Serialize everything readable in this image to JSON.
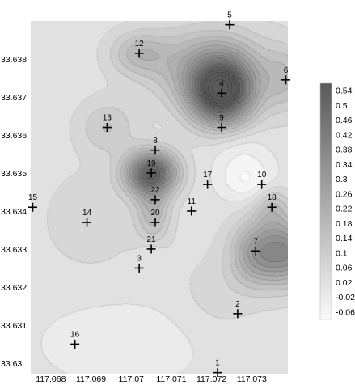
{
  "chart_data": {
    "type": "contour",
    "title": "",
    "xlabel": "",
    "ylabel": "",
    "xlim": [
      117.0675,
      117.0739
    ],
    "ylim": [
      33.6297,
      33.639
    ],
    "x_ticks": [
      "117.068",
      "117.069",
      "117.07",
      "117.071",
      "117.072",
      "117.073"
    ],
    "x_tick_values": [
      117.068,
      117.069,
      117.07,
      117.071,
      117.072,
      117.073
    ],
    "y_ticks": [
      "33.63",
      "33.631",
      "33.632",
      "33.633",
      "33.634",
      "33.635",
      "33.636",
      "33.637",
      "33.638"
    ],
    "y_tick_values": [
      33.63,
      33.631,
      33.632,
      33.633,
      33.634,
      33.635,
      33.636,
      33.637,
      33.638
    ],
    "colorbar": {
      "labels": [
        "0.54",
        "0.5",
        "0.46",
        "0.42",
        "0.38",
        "0.34",
        "0.3",
        "0.26",
        "0.22",
        "0.18",
        "0.14",
        "0.1",
        "0.06",
        "0.02",
        "-0.02",
        "-0.06"
      ],
      "values": [
        0.54,
        0.5,
        0.46,
        0.42,
        0.38,
        0.34,
        0.3,
        0.26,
        0.22,
        0.18,
        0.14,
        0.1,
        0.06,
        0.02,
        -0.02,
        -0.06
      ],
      "range": [
        -0.08,
        0.56
      ]
    },
    "points": [
      {
        "label": "1",
        "x": 117.07215,
        "y": 33.62975
      },
      {
        "label": "2",
        "x": 117.07265,
        "y": 33.6313
      },
      {
        "label": "3",
        "x": 117.0702,
        "y": 33.6325
      },
      {
        "label": "4",
        "x": 117.07225,
        "y": 33.6371
      },
      {
        "label": "5",
        "x": 117.07245,
        "y": 33.6389
      },
      {
        "label": "6",
        "x": 117.07385,
        "y": 33.63745
      },
      {
        "label": "7",
        "x": 117.0731,
        "y": 33.63295
      },
      {
        "label": "8",
        "x": 117.0706,
        "y": 33.6356
      },
      {
        "label": "9",
        "x": 117.07225,
        "y": 33.6362
      },
      {
        "label": "10",
        "x": 117.07325,
        "y": 33.6347
      },
      {
        "label": "11",
        "x": 117.0715,
        "y": 33.634
      },
      {
        "label": "12",
        "x": 117.0702,
        "y": 33.63815
      },
      {
        "label": "13",
        "x": 117.0694,
        "y": 33.6362
      },
      {
        "label": "14",
        "x": 117.0689,
        "y": 33.6337
      },
      {
        "label": "15",
        "x": 117.06755,
        "y": 33.6341
      },
      {
        "label": "16",
        "x": 117.0686,
        "y": 33.6305
      },
      {
        "label": "17",
        "x": 117.0719,
        "y": 33.6347
      },
      {
        "label": "18",
        "x": 117.0735,
        "y": 33.6341
      },
      {
        "label": "19",
        "x": 117.0705,
        "y": 33.635
      },
      {
        "label": "20",
        "x": 117.0706,
        "y": 33.6337
      },
      {
        "label": "21",
        "x": 117.0705,
        "y": 33.633
      },
      {
        "label": "22",
        "x": 117.0706,
        "y": 33.6343
      }
    ],
    "field_peaks": [
      {
        "x": 117.07225,
        "y": 33.6371,
        "value": 0.56,
        "sx": 0.00055,
        "sy": 0.0006
      },
      {
        "x": 117.07195,
        "y": 33.6378,
        "value": 0.22,
        "sx": 0.001,
        "sy": 0.0007
      },
      {
        "x": 117.0705,
        "y": 33.635,
        "value": 0.48,
        "sx": 0.00045,
        "sy": 0.0004
      },
      {
        "x": 117.07055,
        "y": 33.634,
        "value": 0.16,
        "sx": 0.0003,
        "sy": 0.0006
      },
      {
        "x": 117.0702,
        "y": 33.63815,
        "value": 0.14,
        "sx": 0.0005,
        "sy": 0.0004
      },
      {
        "x": 117.0694,
        "y": 33.6362,
        "value": 0.1,
        "sx": 0.0005,
        "sy": 0.0005
      },
      {
        "x": 117.0738,
        "y": 33.6329,
        "value": 0.34,
        "sx": 0.0006,
        "sy": 0.0006
      },
      {
        "x": 117.073,
        "y": 33.6329,
        "value": 0.14,
        "sx": 0.0004,
        "sy": 0.0006
      },
      {
        "x": 117.0735,
        "y": 33.6341,
        "value": 0.12,
        "sx": 0.0003,
        "sy": 0.0004
      },
      {
        "x": 117.07385,
        "y": 33.63745,
        "value": 0.12,
        "sx": 0.0004,
        "sy": 0.0006
      },
      {
        "x": 117.07215,
        "y": 33.6318,
        "value": 0.04,
        "sx": 0.0007,
        "sy": 0.0008
      },
      {
        "x": 117.069,
        "y": 33.6338,
        "value": 0.05,
        "sx": 0.0008,
        "sy": 0.0009
      }
    ],
    "field_dips": [
      {
        "x": 117.0729,
        "y": 33.6348,
        "value": -0.1,
        "sx": 0.0005,
        "sy": 0.0004
      },
      {
        "x": 117.0727,
        "y": 33.6356,
        "value": -0.05,
        "sx": 0.0005,
        "sy": 0.0004
      },
      {
        "x": 117.0705,
        "y": 33.6329,
        "value": -0.05,
        "sx": 0.0002,
        "sy": 0.0002
      },
      {
        "x": 117.0698,
        "y": 33.6305,
        "value": -0.05,
        "sx": 0.0015,
        "sy": 0.0008
      }
    ],
    "field_base": 0.02
  }
}
